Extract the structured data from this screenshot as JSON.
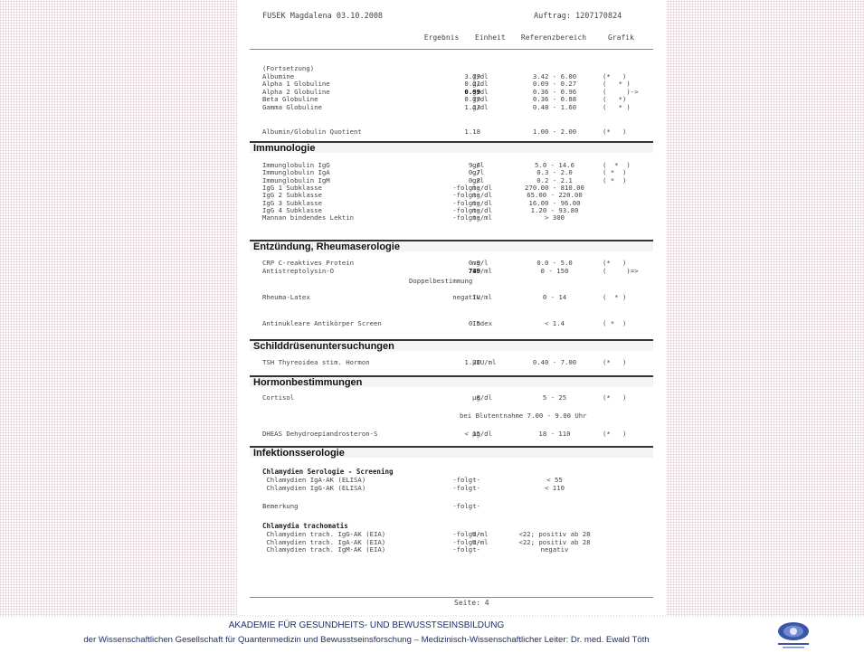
{
  "header": {
    "patient": "FUSEK Magdalena 03.10.2008",
    "auftrag": "Auftrag: 1207170824"
  },
  "columns": {
    "ergebnis": "Ergebnis",
    "einheit": "Einheit",
    "referenz": "Referenzbereich",
    "grafik": "Grafik"
  },
  "block1": [
    {
      "name": "(Fortsetzung)",
      "val": "",
      "unit": "",
      "ref": "",
      "gra": "",
      "bold": false
    },
    {
      "name": "Albumine",
      "val": "3.79",
      "unit": "g/dl",
      "ref": "3.42 - 6.00",
      "gra": "(*   )",
      "bold": false
    },
    {
      "name": "Alpha 1 Globuline",
      "val": "0.21",
      "unit": "g/dl",
      "ref": "0.09 - 0.27",
      "gra": "(   * )",
      "bold": false
    },
    {
      "name": "Alpha 2 Globuline",
      "val": "0.99",
      "unit": "g/dl",
      "ref": "0.36 - 0.96",
      "gra": "(     )->",
      "bold": true
    },
    {
      "name": "Beta Globuline",
      "val": "0.79",
      "unit": "g/dl",
      "ref": "0.36 - 0.88",
      "gra": "(   *)",
      "bold": false
    },
    {
      "name": "Gamma Globuline",
      "val": "1.23",
      "unit": "g/dl",
      "ref": "0.48 - 1.60",
      "gra": "(   * )",
      "bold": false
    }
  ],
  "quotient": {
    "name": "Albumin/Globulin Quotient",
    "val": "1.18",
    "unit": "",
    "ref": "1.00 - 2.00",
    "gra": "(*   )"
  },
  "sections": {
    "immunologie": "Immunologie",
    "entzuendung": "Entzündung, Rheumaserologie",
    "schilddruese": "Schilddrüsenuntersuchungen",
    "hormon": "Hormonbestimmungen",
    "infektion": "Infektionsserologie"
  },
  "immuno": [
    {
      "name": "Immunglobulin IgG",
      "val": "9.6",
      "unit": "g/l",
      "ref": "5.0 - 14.6",
      "gra": "(  *  )"
    },
    {
      "name": "Immunglobulin IgA",
      "val": "0.7",
      "unit": "g/l",
      "ref": "0.3 - 2.0",
      "gra": "( *  )"
    },
    {
      "name": "Immunglobulin IgM",
      "val": "0.8",
      "unit": "g/l",
      "ref": "0.2 - 2.1",
      "gra": "( *  )"
    },
    {
      "name": "IgG 1 Subklasse",
      "val": "-folgt-",
      "unit": "mg/dl",
      "ref": "270.00 - 810.00",
      "gra": ""
    },
    {
      "name": "IgG 2 Subklasse",
      "val": "-folgt-",
      "unit": "mg/dl",
      "ref": "65.00 - 220.00",
      "gra": ""
    },
    {
      "name": "IgG 3 Subklasse",
      "val": "-folgt-",
      "unit": "mg/dl",
      "ref": "16.00 - 96.00",
      "gra": ""
    },
    {
      "name": "IgG 4 Subklasse",
      "val": "-folgt-",
      "unit": "mg/dl",
      "ref": "1.20 - 93.80",
      "gra": ""
    },
    {
      "name": "Mannan bindendes Lektin",
      "val": "-folgt-",
      "unit": "ng/ml",
      "ref": "> 300",
      "gra": ""
    }
  ],
  "entz": [
    {
      "name": "CRP C-reaktives Protein",
      "val": "0.9",
      "unit": "mg/l",
      "ref": "0.0 - 5.0",
      "gra": "(*   )",
      "bold": false
    },
    {
      "name": "Antistreptolysin-O",
      "val": "749",
      "unit": "IU/ml",
      "ref": "0 - 150",
      "gra": "(     )=>",
      "bold": true
    }
  ],
  "doppel": "Doppelbestimmung",
  "rheuma": {
    "name": "Rheuma-Latex",
    "val": "negativ",
    "unit": "IU/ml",
    "ref": "0 - 14",
    "gra": "(  * )"
  },
  "ana": {
    "name": "Antinukleare Antikörper Screen",
    "val": "0.5",
    "unit": "Index",
    "ref": "< 1.4",
    "gra": "( *  )"
  },
  "tsh": {
    "name": "TSH Thyreoidea stim. Hormon",
    "val": "1.70",
    "unit": "µIU/ml",
    "ref": "0.40 - 7.00",
    "gra": "(*   )"
  },
  "cortisol": {
    "name": "Cortisol",
    "val": "8",
    "unit": "µg/dl",
    "ref": "5 - 25",
    "gra": "(*   )"
  },
  "blutentnahme": "bei Blutentnahme 7.00 - 9.00 Uhr",
  "dheas": {
    "name": "DHEAS Dehydroepiandrosteron-S",
    "val": "< 15",
    "unit": "µg/dl",
    "ref": "18 - 110",
    "gra": "(*   )"
  },
  "chlam_screen": {
    "title": "Chlamydien Serologie - Screening",
    "rows": [
      {
        "name": " Chlamydien IgA-AK (ELISA)",
        "val": "-folgt-",
        "unit": "",
        "ref": "< 55"
      },
      {
        "name": " Chlamydien IgG-AK (ELISA)",
        "val": "-folgt-",
        "unit": "",
        "ref": "< 110"
      }
    ]
  },
  "bemerkung": {
    "name": "Bemerkung",
    "val": "-folgt-"
  },
  "chlam_trach": {
    "title": "Chlamydia trachomatis",
    "rows": [
      {
        "name": " Chlamydien trach. IgG-AK (EIA)",
        "val": "-folgt-",
        "unit": "U/ml",
        "ref": "<22; positiv ab 28"
      },
      {
        "name": " Chlamydien trach. IgA-AK (EIA)",
        "val": "-folgt-",
        "unit": "U/ml",
        "ref": "<22; positiv ab 28"
      },
      {
        "name": " Chlamydien trach. IgM-AK (EIA)",
        "val": "-folgt-",
        "unit": "",
        "ref": "negativ"
      }
    ]
  },
  "seite": "Seite: 4",
  "footer": {
    "line1": "AKADEMIE FÜR GESUNDHEITS- UND BEWUSSTSEINSBILDUNG",
    "line2": "der Wissenschaftlichen Gesellschaft für Quantenmedizin und Bewusstseinsforschung – Medizinisch-Wissenschaftlicher Leiter: Dr. med. Ewald Töth"
  },
  "colors": {
    "footer_text": "#1e2d6e",
    "section_border": "#333333"
  }
}
